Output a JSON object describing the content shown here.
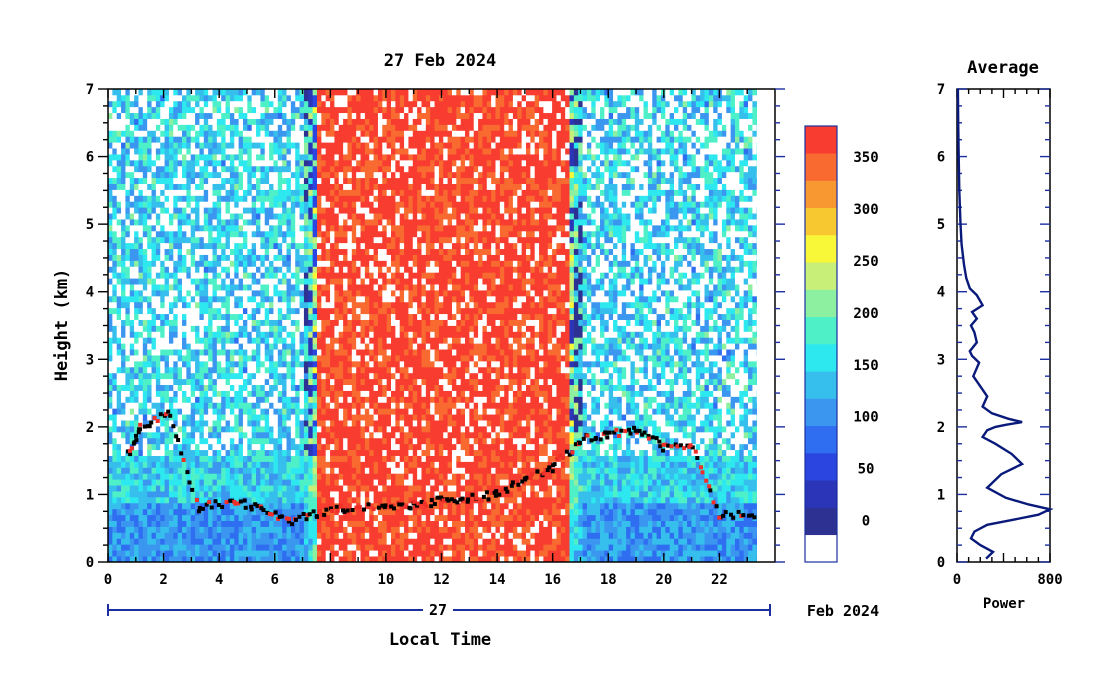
{
  "chart_data": [
    {
      "type": "heatmap",
      "title": "27 Feb 2024",
      "xlabel": "Local Time",
      "ylabel": "Height (km)",
      "xlim": [
        0,
        23.5
      ],
      "ylim": [
        0,
        7
      ],
      "x_ticks": [
        "0",
        "2",
        "4",
        "6",
        "8",
        "10",
        "12",
        "14",
        "16",
        "18",
        "20",
        "22"
      ],
      "y_ticks": [
        "0",
        "1",
        "2",
        "3",
        "4",
        "5",
        "6",
        "7"
      ],
      "date_bar_day": "27",
      "date_bar_label": "Feb 2024",
      "colorbar": {
        "ticks": [
          "0",
          "50",
          "100",
          "150",
          "200",
          "250",
          "300",
          "350"
        ],
        "range": [
          -40,
          380
        ],
        "colors": [
          "#ffffff",
          "#2d3192",
          "#2b35b8",
          "#2a45e0",
          "#2f6ef0",
          "#3b96f0",
          "#36bfec",
          "#2ee8f0",
          "#4ef0c8",
          "#8cf0a0",
          "#c8f078",
          "#f8f838",
          "#f8c830",
          "#f89830",
          "#f86a30",
          "#f83c30"
        ]
      },
      "high_signal_period_hours": [
        7.5,
        16.6
      ],
      "boundary_layer_layer": {
        "x": [
          0.7,
          1.2,
          2.2,
          3.3,
          4.5,
          5.5,
          6.5,
          7.5,
          8.5,
          10,
          11,
          12,
          13,
          14,
          15,
          16,
          17,
          18,
          19,
          20,
          21,
          22,
          23.3
        ],
        "y": [
          1.6,
          2.0,
          2.2,
          0.8,
          0.9,
          0.8,
          0.6,
          0.7,
          0.8,
          0.8,
          0.85,
          0.9,
          0.95,
          1.0,
          1.2,
          1.4,
          1.8,
          1.9,
          1.95,
          1.7,
          1.7,
          0.7,
          0.7
        ]
      }
    },
    {
      "type": "line",
      "title": "Average",
      "xlabel": "Power",
      "xlim": [
        0,
        800
      ],
      "ylim": [
        0,
        7
      ],
      "x_ticks": [
        "0",
        "800"
      ],
      "y_ticks": [
        "0",
        "1",
        "2",
        "3",
        "4",
        "5",
        "6",
        "7"
      ],
      "series": [
        {
          "x": [
            250,
            310,
            200,
            120,
            150,
            260,
            470,
            700,
            800,
            620,
            420,
            260,
            380,
            560,
            470,
            330,
            220,
            260,
            330,
            420,
            560,
            440,
            300,
            220,
            260,
            200,
            140,
            190,
            130,
            110,
            170,
            150,
            120,
            170,
            130,
            220,
            170,
            110,
            80,
            60,
            40,
            30,
            20,
            15,
            10,
            8
          ],
          "y": [
            0.05,
            0.15,
            0.25,
            0.35,
            0.45,
            0.55,
            0.62,
            0.7,
            0.78,
            0.85,
            0.95,
            1.1,
            1.3,
            1.45,
            1.6,
            1.75,
            1.85,
            1.95,
            2.0,
            2.03,
            2.07,
            2.12,
            2.2,
            2.3,
            2.45,
            2.6,
            2.75,
            2.95,
            3.05,
            3.12,
            3.25,
            3.4,
            3.5,
            3.6,
            3.7,
            3.8,
            3.95,
            4.05,
            4.2,
            4.4,
            4.7,
            5.0,
            5.5,
            6.0,
            6.5,
            7.0
          ]
        }
      ]
    }
  ]
}
